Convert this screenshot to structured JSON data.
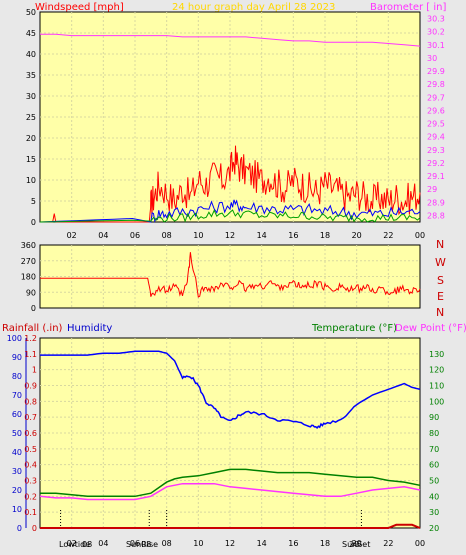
{
  "header": {
    "windspeed_label": "Windspeed [mph]",
    "title": "24 hour graph day   April 28 2023",
    "barometer_label": "Barometer [ in]"
  },
  "colors": {
    "plot_bg": "#ffffa8",
    "frame_bg": "#e8e8e8",
    "grid": "#d8d8a0",
    "wind": "#ff0000",
    "gust_mid": "#0000ff",
    "gust_low": "#00a000",
    "barometer": "#ff33ff",
    "direction": "#ff0000",
    "humidity": "#0000ff",
    "temperature": "#008000",
    "dew_point": "#ff33ff",
    "rain": "#cc0000",
    "title": "#ffd700",
    "markers": "#000000"
  },
  "x_ticks": [
    "02",
    "04",
    "06",
    "08",
    "10",
    "12",
    "14",
    "16",
    "18",
    "20",
    "22",
    "00"
  ],
  "compass_labels": [
    "N",
    "W",
    "S",
    "E",
    "N"
  ],
  "bottom_labels": {
    "rainfall": "Rainfall (.in)",
    "humidity": "Humidity",
    "temperature": "Temperature (°F)",
    "dew_point": "Dew Point (°F)"
  },
  "markers": {
    "lowtide": "Lowtide",
    "lowtide_hour": "08",
    "sunrise": "SunRise",
    "sunrise_hour": "08",
    "sunset": "SunSet",
    "sunset_hour": "20"
  },
  "chart_data": [
    {
      "type": "line",
      "title": "24 hour graph day   April 28 2023",
      "x_range_hours": [
        0,
        24
      ],
      "y_left": {
        "label": "Windspeed [mph]",
        "range": [
          0,
          50
        ],
        "ticks": [
          0,
          5,
          10,
          15,
          20,
          25,
          30,
          35,
          40,
          45,
          50
        ]
      },
      "y_right": {
        "label": "Barometer [ in]",
        "range": [
          28.75,
          30.35
        ],
        "ticks": [
          "28.8",
          "28.9",
          "29",
          "29.1",
          "29.2",
          "29.3",
          "29.4",
          "29.5",
          "29.6",
          "29.7",
          "29.8",
          "29.9",
          "30",
          "30.1",
          "30.2",
          "30.3"
        ]
      },
      "series": [
        {
          "name": "Windspeed [mph]",
          "kind": "gust",
          "x": [
            0,
            0.8,
            0.9,
            1,
            6.9,
            7,
            7.2,
            7.5,
            8,
            8.5,
            9,
            9.5,
            10,
            10.5,
            11,
            11.5,
            12,
            12.3,
            12.6,
            13,
            13.5,
            14,
            14.5,
            15,
            15.5,
            16,
            16.5,
            17,
            17.5,
            18,
            18.5,
            19,
            19.5,
            20,
            20.5,
            21,
            21.5,
            22,
            22.5,
            23,
            23.5,
            24
          ],
          "y": [
            0,
            0,
            2,
            0,
            0,
            4,
            6,
            9,
            7,
            5,
            8,
            6,
            10,
            9,
            11,
            10,
            12,
            15,
            13,
            12,
            11,
            10,
            11,
            9,
            8,
            10,
            9,
            8,
            7,
            9,
            8,
            7,
            6,
            7,
            6,
            5,
            6,
            5,
            6,
            5,
            6,
            7
          ]
        },
        {
          "kind": "speed",
          "x": [
            0,
            7,
            7.5,
            8,
            9,
            10,
            11,
            12,
            12.5,
            13,
            14,
            15,
            16,
            17,
            18,
            19,
            20,
            21,
            22,
            23,
            24
          ],
          "y": [
            0,
            1,
            2,
            2,
            2.5,
            3,
            3.5,
            4,
            4,
            3.5,
            3.5,
            3,
            3,
            3,
            2.5,
            2.5,
            2,
            2,
            2,
            2.5,
            2.5
          ]
        },
        {
          "kind": "speed_low",
          "x": [
            0,
            7,
            8,
            9,
            10,
            11,
            12,
            13,
            14,
            15,
            16,
            17,
            18,
            19,
            20,
            21,
            22,
            23,
            24
          ],
          "y": [
            0,
            0.5,
            1,
            1,
            1.5,
            2,
            2,
            2,
            1.5,
            1.5,
            1.5,
            1.5,
            1,
            1,
            1,
            1,
            1,
            1,
            1
          ]
        },
        {
          "name": "Barometer [ in]",
          "axis": "right",
          "x": [
            0,
            1,
            2,
            3,
            4,
            5,
            6,
            7,
            8,
            9,
            10,
            11,
            12,
            13,
            14,
            15,
            16,
            17,
            18,
            19,
            20,
            21,
            22,
            23,
            24
          ],
          "y": [
            30.18,
            30.18,
            30.17,
            30.17,
            30.17,
            30.17,
            30.17,
            30.17,
            30.17,
            30.16,
            30.16,
            30.16,
            30.16,
            30.16,
            30.15,
            30.14,
            30.13,
            30.13,
            30.12,
            30.12,
            30.12,
            30.12,
            30.11,
            30.1,
            30.09
          ]
        }
      ]
    },
    {
      "type": "line",
      "x_range_hours": [
        0,
        24
      ],
      "y_left": {
        "range": [
          0,
          360
        ],
        "ticks": [
          0,
          90,
          180,
          270,
          360
        ]
      },
      "series": [
        {
          "kind": "direction",
          "x": [
            0,
            1,
            2,
            3,
            4,
            5,
            6,
            6.8,
            7,
            7.5,
            8,
            8.5,
            9,
            9.3,
            9.5,
            10,
            10.5,
            11,
            11.5,
            12,
            12.5,
            13,
            13.5,
            14,
            14.5,
            15,
            15.5,
            16,
            16.5,
            17,
            17.5,
            18,
            18.5,
            19,
            19.5,
            20,
            20.5,
            21,
            21.5,
            22,
            22.5,
            23,
            23.5,
            24
          ],
          "y": [
            170,
            170,
            170,
            170,
            170,
            170,
            170,
            170,
            80,
            110,
            100,
            120,
            70,
            150,
            300,
            80,
            120,
            110,
            130,
            120,
            140,
            110,
            130,
            120,
            150,
            120,
            130,
            140,
            120,
            130,
            140,
            120,
            110,
            130,
            100,
            110,
            120,
            100,
            110,
            90,
            100,
            110,
            100,
            110
          ]
        }
      ]
    },
    {
      "type": "line",
      "x_range_hours": [
        0,
        24
      ],
      "y_left": {
        "label": "Rainfall (.in)",
        "range": [
          0,
          1.2
        ],
        "ticks": [
          "0",
          "0.1",
          "0.2",
          "0.3",
          "0.4",
          "0.5",
          "0.6",
          "0.7",
          "0.8",
          "0.9",
          "1",
          "1.1",
          "1.2"
        ]
      },
      "y_left_outer": {
        "label": "Humidity",
        "range": [
          0,
          100
        ],
        "ticks": [
          0,
          10,
          20,
          30,
          40,
          50,
          60,
          70,
          80,
          90,
          100
        ]
      },
      "y_right": {
        "label": "Temperature (°F)",
        "range": [
          20,
          140
        ],
        "ticks": [
          20,
          30,
          40,
          50,
          60,
          70,
          80,
          90,
          100,
          110,
          120,
          130
        ]
      },
      "series": [
        {
          "name": "Humidity",
          "axis": "left_outer",
          "x": [
            0,
            1,
            2,
            3,
            4,
            5,
            6,
            7,
            7.5,
            8,
            8.5,
            9,
            9.5,
            10,
            10.5,
            11,
            11.5,
            12,
            12.5,
            13,
            14,
            15,
            16,
            17,
            17.5,
            18,
            19,
            20,
            21,
            22,
            23,
            23.5,
            24
          ],
          "y": [
            91,
            91,
            91,
            91,
            92,
            92,
            93,
            93,
            93,
            92,
            88,
            79,
            80,
            75,
            66,
            63,
            58,
            56,
            59,
            61,
            60,
            57,
            56,
            54,
            53,
            55,
            57,
            65,
            70,
            73,
            76,
            74,
            73
          ]
        },
        {
          "name": "Temperature (°F)",
          "axis": "right",
          "x": [
            0,
            1,
            2,
            3,
            4,
            5,
            6,
            7,
            8,
            8.5,
            9,
            10,
            11,
            12,
            13,
            14,
            15,
            16,
            17,
            18,
            19,
            20,
            21,
            22,
            23,
            24
          ],
          "y": [
            42,
            42,
            41,
            40,
            40,
            40,
            40,
            42,
            49,
            51,
            52,
            53,
            55,
            57,
            57,
            56,
            55,
            55,
            55,
            54,
            53,
            52,
            52,
            50,
            49,
            47
          ]
        },
        {
          "name": "Dew Point (°F)",
          "axis": "right",
          "x": [
            0,
            1,
            2,
            3,
            4,
            5,
            6,
            7,
            8,
            9,
            10,
            11,
            12,
            13,
            14,
            15,
            16,
            17,
            18,
            19,
            20,
            21,
            22,
            23,
            24
          ],
          "y": [
            40,
            39,
            39,
            38,
            38,
            38,
            38,
            40,
            46,
            48,
            48,
            48,
            46,
            45,
            44,
            43,
            42,
            41,
            40,
            40,
            42,
            44,
            45,
            46,
            44
          ]
        },
        {
          "name": "Rainfall (.in)",
          "x": [
            0,
            1,
            2,
            3,
            4,
            5,
            6,
            7,
            8,
            9,
            10,
            11,
            12,
            13,
            14,
            15,
            16,
            17,
            18,
            19,
            20,
            21,
            22,
            22.5,
            23,
            23.5,
            24
          ],
          "y": [
            0,
            0,
            0,
            0,
            0,
            0,
            0,
            0,
            0,
            0,
            0,
            0,
            0,
            0,
            0,
            0,
            0,
            0,
            0,
            0,
            0,
            0,
            0,
            0.02,
            0.02,
            0.02,
            0
          ]
        }
      ]
    }
  ]
}
